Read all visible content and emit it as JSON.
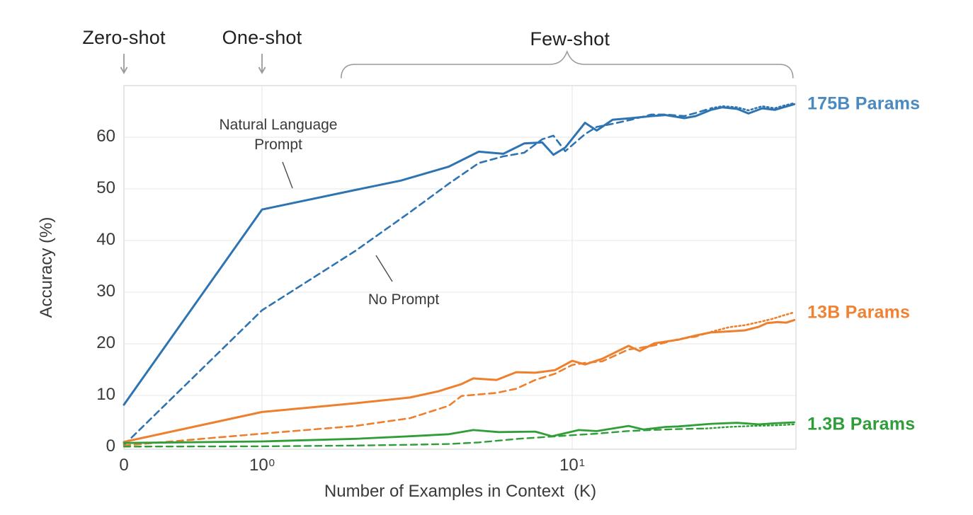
{
  "header": {
    "zero_shot": "Zero-shot",
    "one_shot": "One-shot",
    "few_shot": "Few-shot"
  },
  "chart_data": {
    "type": "line",
    "title": "",
    "xlabel": "Number of Examples in Context  (K)",
    "ylabel": "Accuracy (%)",
    "x_scale": "symlog (linear 0→1, log 1→52)",
    "xlim": [
      0,
      52
    ],
    "ylim": [
      0,
      70
    ],
    "grid": "on",
    "yticks": [
      0,
      10,
      20,
      30,
      40,
      50,
      60
    ],
    "xticks": [
      {
        "value": 0,
        "label": "0",
        "exp": ""
      },
      {
        "value": 1,
        "label": "10",
        "exp": "0"
      },
      {
        "value": 10,
        "label": "10",
        "exp": "1"
      }
    ],
    "x_gridlines": [
      1,
      10
    ],
    "regions": {
      "zero_shot_x": 0,
      "one_shot_x": 1,
      "few_shot_range": [
        1.8,
        51.5
      ]
    },
    "annotations": {
      "natural_language_prompt": {
        "line1": "Natural Language",
        "line2": "Prompt"
      },
      "no_prompt": {
        "text": "No Prompt"
      }
    },
    "series_labels": [
      {
        "text": "175B Params",
        "color": "#4a8ac1",
        "anchor_y": 66.4
      },
      {
        "text": "13B Params",
        "color": "#f08234",
        "anchor_y": 26.0
      },
      {
        "text": "1.3B Params",
        "color": "#2f9e3a",
        "anchor_y": 4.4
      }
    ],
    "series": [
      {
        "name": "175B Params — Natural Language Prompt",
        "color": "#2e74b2",
        "style": "solid",
        "width": 3,
        "points": [
          [
            0,
            8.2
          ],
          [
            1,
            46
          ],
          [
            2,
            49.8
          ],
          [
            2.8,
            51.6
          ],
          [
            4,
            54.3
          ],
          [
            5,
            57.2
          ],
          [
            6,
            56.8
          ],
          [
            7,
            58.8
          ],
          [
            8,
            59
          ],
          [
            8.7,
            56.6
          ],
          [
            9.5,
            58
          ],
          [
            11,
            62.8
          ],
          [
            12,
            61.3
          ],
          [
            13.5,
            63.4
          ],
          [
            15.5,
            63.7
          ],
          [
            18,
            64.1
          ],
          [
            20,
            64.3
          ],
          [
            23,
            63.7
          ],
          [
            25,
            64.1
          ],
          [
            28,
            65.3
          ],
          [
            30.5,
            65.8
          ],
          [
            34,
            65.5
          ],
          [
            37,
            64.6
          ],
          [
            41,
            65.6
          ],
          [
            45,
            65.3
          ],
          [
            48,
            65.8
          ],
          [
            52,
            66.4
          ]
        ]
      },
      {
        "name": "175B Params — No Prompt",
        "color": "#2e74b2",
        "style": "dashed",
        "width": 2.6,
        "dotted_from": 28,
        "points": [
          [
            0,
            0.4
          ],
          [
            1,
            26.5
          ],
          [
            2,
            38
          ],
          [
            3,
            45.5
          ],
          [
            4,
            51
          ],
          [
            5,
            55
          ],
          [
            6,
            56.3
          ],
          [
            7,
            57
          ],
          [
            8,
            59.6
          ],
          [
            8.7,
            60.3
          ],
          [
            9.5,
            57.3
          ],
          [
            11,
            60.6
          ],
          [
            12,
            62
          ],
          [
            13.5,
            62.6
          ],
          [
            15.5,
            63.4
          ],
          [
            18,
            64.4
          ],
          [
            20,
            64.4
          ],
          [
            23,
            64.1
          ],
          [
            25,
            64.7
          ],
          [
            28,
            65.6
          ],
          [
            30.5,
            66
          ],
          [
            34,
            65.8
          ],
          [
            37,
            65.2
          ],
          [
            41,
            66
          ],
          [
            45,
            65.6
          ],
          [
            48,
            66.1
          ],
          [
            52,
            66.6
          ]
        ]
      },
      {
        "name": "13B Params — Natural Language Prompt",
        "color": "#ee7f2d",
        "style": "solid",
        "width": 3,
        "points": [
          [
            0,
            1.0
          ],
          [
            1,
            6.8
          ],
          [
            2,
            8.5
          ],
          [
            3,
            9.6
          ],
          [
            3.7,
            10.8
          ],
          [
            4.4,
            12.2
          ],
          [
            4.8,
            13.3
          ],
          [
            5.7,
            13.0
          ],
          [
            6.6,
            14.5
          ],
          [
            7.6,
            14.4
          ],
          [
            8.8,
            14.9
          ],
          [
            10,
            16.7
          ],
          [
            11,
            16.0
          ],
          [
            12.5,
            17.1
          ],
          [
            15.2,
            19.6
          ],
          [
            16.5,
            18.6
          ],
          [
            18.4,
            20.1
          ],
          [
            22,
            20.8
          ],
          [
            25,
            21.6
          ],
          [
            28,
            22.2
          ],
          [
            32,
            22.4
          ],
          [
            36,
            22.6
          ],
          [
            40,
            23.3
          ],
          [
            42.5,
            24.0
          ],
          [
            46,
            24.2
          ],
          [
            49,
            24.1
          ],
          [
            52,
            24.6
          ]
        ]
      },
      {
        "name": "13B Params — No Prompt",
        "color": "#ee7f2d",
        "style": "dashed",
        "width": 2.6,
        "dotted_from": 28,
        "points": [
          [
            0,
            0.3
          ],
          [
            1,
            2.6
          ],
          [
            2,
            4.1
          ],
          [
            3,
            5.6
          ],
          [
            4,
            8.0
          ],
          [
            4.4,
            9.9
          ],
          [
            5.7,
            10.5
          ],
          [
            6.6,
            11.3
          ],
          [
            7.6,
            13.0
          ],
          [
            8.8,
            14.2
          ],
          [
            10,
            15.9
          ],
          [
            11,
            16.3
          ],
          [
            12.5,
            16.6
          ],
          [
            15.2,
            18.9
          ],
          [
            16.5,
            19.2
          ],
          [
            18.4,
            19.7
          ],
          [
            22,
            20.9
          ],
          [
            25,
            21.4
          ],
          [
            28,
            22.3
          ],
          [
            32,
            23.2
          ],
          [
            36,
            23.6
          ],
          [
            40,
            24.2
          ],
          [
            44,
            24.8
          ],
          [
            48,
            25.5
          ],
          [
            52,
            26.1
          ]
        ]
      },
      {
        "name": "1.3B Params — Natural Language Prompt",
        "color": "#2f9e38",
        "style": "solid",
        "width": 2.8,
        "points": [
          [
            0,
            0.8
          ],
          [
            1,
            1.1
          ],
          [
            2,
            1.6
          ],
          [
            3,
            2.1
          ],
          [
            4,
            2.5
          ],
          [
            4.8,
            3.3
          ],
          [
            5.8,
            2.9
          ],
          [
            7.6,
            3.0
          ],
          [
            8.6,
            2.1
          ],
          [
            10.5,
            3.3
          ],
          [
            12,
            3.1
          ],
          [
            15.2,
            4.1
          ],
          [
            17,
            3.4
          ],
          [
            20,
            3.9
          ],
          [
            22,
            4.0
          ],
          [
            28,
            4.5
          ],
          [
            34,
            4.7
          ],
          [
            40,
            4.4
          ],
          [
            45,
            4.6
          ],
          [
            52,
            4.8
          ]
        ]
      },
      {
        "name": "1.3B Params — No Prompt",
        "color": "#2f9e38",
        "style": "dashed",
        "width": 2.4,
        "dotted_from": 27,
        "points": [
          [
            0,
            0.1
          ],
          [
            1,
            0.15
          ],
          [
            2,
            0.3
          ],
          [
            3,
            0.45
          ],
          [
            4,
            0.6
          ],
          [
            5,
            0.9
          ],
          [
            6.7,
            1.6
          ],
          [
            8,
            1.9
          ],
          [
            10,
            2.3
          ],
          [
            12,
            2.6
          ],
          [
            15,
            3.1
          ],
          [
            18,
            3.3
          ],
          [
            22,
            3.5
          ],
          [
            27,
            3.6
          ],
          [
            32,
            3.9
          ],
          [
            38,
            4.1
          ],
          [
            45,
            4.2
          ],
          [
            52,
            4.4
          ]
        ]
      }
    ]
  }
}
